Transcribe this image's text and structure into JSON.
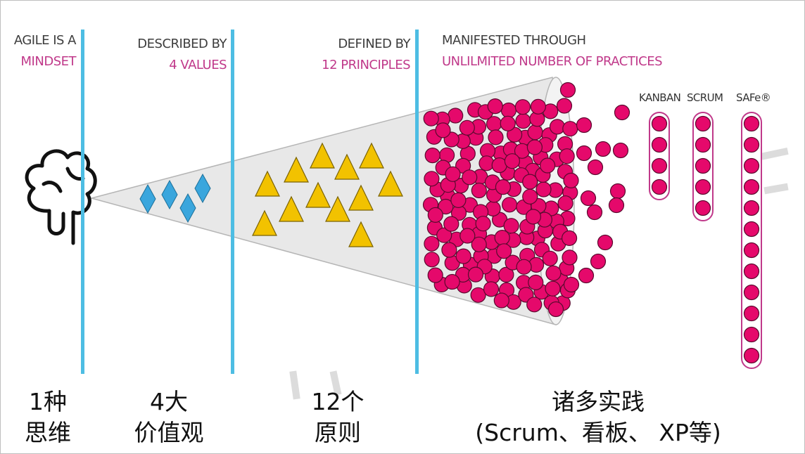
{
  "headers": {
    "mindset": {
      "line1": "AGILE IS A",
      "line2": "MINDSET"
    },
    "values": {
      "line1": "DESCRIBED BY",
      "line2": "4 VALUES"
    },
    "principles": {
      "line1": "DEFINED BY",
      "line2": "12 PRINCIPLES"
    },
    "practices": {
      "line1": "MANIFESTED THROUGH",
      "line2": "UNLILMITED NUMBER OF PRACTICES"
    }
  },
  "frameworks": [
    {
      "label": "KANBAN",
      "dots": 4
    },
    {
      "label": "SCRUM",
      "dots": 5
    },
    {
      "label": "SAFe®",
      "dots": 12
    }
  ],
  "counts": {
    "values": 4,
    "principles": 12
  },
  "captions": {
    "mindset": {
      "line1": "1种",
      "line2": "思维"
    },
    "values": {
      "line1": "4大",
      "line2": "价值观"
    },
    "principles": {
      "line1": "12个",
      "line2": "原则"
    },
    "practices": {
      "line1": "诸多实践",
      "line2": "(Scrum、看板、 XP等)"
    }
  },
  "colors": {
    "divider": "#4dbde3",
    "accent_text": "#c0398a",
    "value_diamond": "#3aa6dd",
    "principle_triangle": "#f2c200",
    "practice_dot": "#e5096b",
    "cone_fill": "#e8e8e8"
  },
  "icons": {
    "brain": "brain-icon"
  }
}
